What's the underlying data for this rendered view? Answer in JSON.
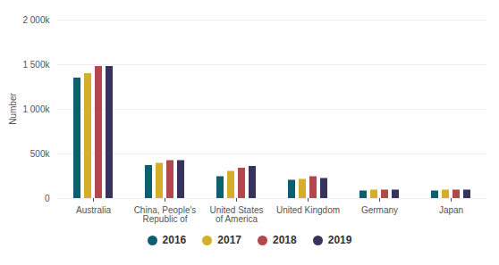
{
  "chart_data": {
    "type": "bar",
    "ylabel": "Number",
    "categories": [
      "Australia",
      "China, People's Republic of",
      "United States of America",
      "United Kingdom",
      "Germany",
      "Japan"
    ],
    "series": [
      {
        "name": "2016",
        "color": "#0e5e72",
        "values": [
          1350000,
          370000,
          245000,
          205000,
          85000,
          85000
        ]
      },
      {
        "name": "2017",
        "color": "#d2b02c",
        "values": [
          1400000,
          395000,
          305000,
          215000,
          95000,
          95000
        ]
      },
      {
        "name": "2018",
        "color": "#b3474e",
        "values": [
          1480000,
          425000,
          340000,
          245000,
          95000,
          95000
        ]
      },
      {
        "name": "2019",
        "color": "#37335e",
        "values": [
          1480000,
          425000,
          360000,
          225000,
          95000,
          95000
        ]
      }
    ],
    "ylim": [
      0,
      2000000
    ],
    "yticks": [
      0,
      {
        "value": 500000,
        "label": "500k"
      },
      {
        "value": 1000000,
        "label": "1 000k"
      },
      {
        "value": 1500000,
        "label": "1 500k"
      },
      {
        "value": 2000000,
        "label": "2 000k"
      }
    ],
    "grid": true,
    "legend": "bottom"
  }
}
